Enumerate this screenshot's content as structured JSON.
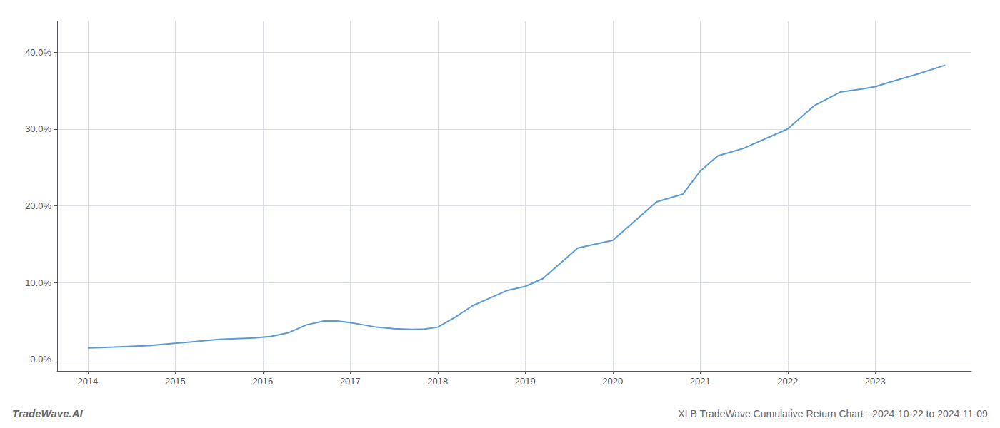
{
  "chart_data": {
    "type": "line",
    "title": "XLB TradeWave Cumulative Return Chart - 2024-10-22 to 2024-11-09",
    "annotations": [
      "TradeWave.AI"
    ],
    "color": "#5b9bd5",
    "x": [
      2014.0,
      2014.15,
      2014.3,
      2014.5,
      2014.7,
      2014.9,
      2015.1,
      2015.3,
      2015.5,
      2015.7,
      2015.9,
      2016.1,
      2016.3,
      2016.5,
      2016.7,
      2016.85,
      2017.0,
      2017.15,
      2017.3,
      2017.5,
      2017.7,
      2017.85,
      2018.0,
      2018.2,
      2018.4,
      2018.6,
      2018.8,
      2019.0,
      2019.2,
      2019.4,
      2019.6,
      2019.8,
      2020.0,
      2020.2,
      2020.5,
      2020.8,
      2021.0,
      2021.2,
      2021.5,
      2021.8,
      2022.0,
      2022.3,
      2022.6,
      2022.85,
      2023.0,
      2023.2,
      2023.5,
      2023.8
    ],
    "values": [
      1.5,
      1.55,
      1.6,
      1.7,
      1.8,
      2.0,
      2.2,
      2.4,
      2.6,
      2.7,
      2.8,
      3.0,
      3.5,
      4.5,
      5.0,
      5.0,
      4.8,
      4.5,
      4.2,
      4.0,
      3.9,
      3.95,
      4.2,
      5.5,
      7.0,
      8.0,
      9.0,
      9.5,
      10.5,
      12.5,
      14.5,
      15.0,
      15.5,
      17.5,
      20.5,
      21.5,
      24.5,
      26.5,
      27.5,
      29.0,
      30.0,
      33.0,
      34.8,
      35.2,
      35.5,
      36.2,
      37.2,
      38.3
    ],
    "xlim": [
      2013.65,
      2024.1
    ],
    "ylim": [
      -1.5,
      44.0
    ],
    "xticks": [
      2014,
      2015,
      2016,
      2017,
      2018,
      2019,
      2020,
      2021,
      2022,
      2023
    ],
    "yticks": [
      {
        "value": 0.0,
        "label": "0.0%"
      },
      {
        "value": 10.0,
        "label": "10.0%"
      },
      {
        "value": 20.0,
        "label": "20.0%"
      },
      {
        "value": 30.0,
        "label": "30.0%"
      },
      {
        "value": 40.0,
        "label": "40.0%"
      }
    ],
    "grid": true
  }
}
